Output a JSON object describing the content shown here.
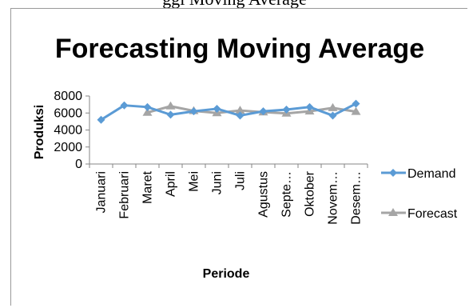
{
  "top_text": "ggi                      Moving Average",
  "chart_data": {
    "type": "line",
    "title": "Forecasting Moving Average",
    "xlabel": "Periode",
    "ylabel": "Produksi",
    "categories": [
      "Januari",
      "Februari",
      "Maret",
      "April",
      "Mei",
      "Juni",
      "Juli",
      "Agustus",
      "Septe…",
      "Oktober",
      "Novem…",
      "Desem…"
    ],
    "yticks": [
      "0",
      "2000",
      "4000",
      "6000",
      "8000"
    ],
    "ylim": [
      0,
      8000
    ],
    "grid": false,
    "legend": "right",
    "series": [
      {
        "name": "Demand",
        "color": "#5b9bd5",
        "marker": "diamond",
        "values": [
          5200,
          6900,
          6700,
          5800,
          6200,
          6500,
          5700,
          6200,
          6400,
          6700,
          5700,
          7100
        ]
      },
      {
        "name": "Forecast",
        "color": "#a5a5a5",
        "marker": "triangle",
        "values": [
          null,
          null,
          6050,
          6800,
          6250,
          6000,
          6300,
          6100,
          5950,
          6200,
          6600,
          6150
        ]
      }
    ]
  }
}
